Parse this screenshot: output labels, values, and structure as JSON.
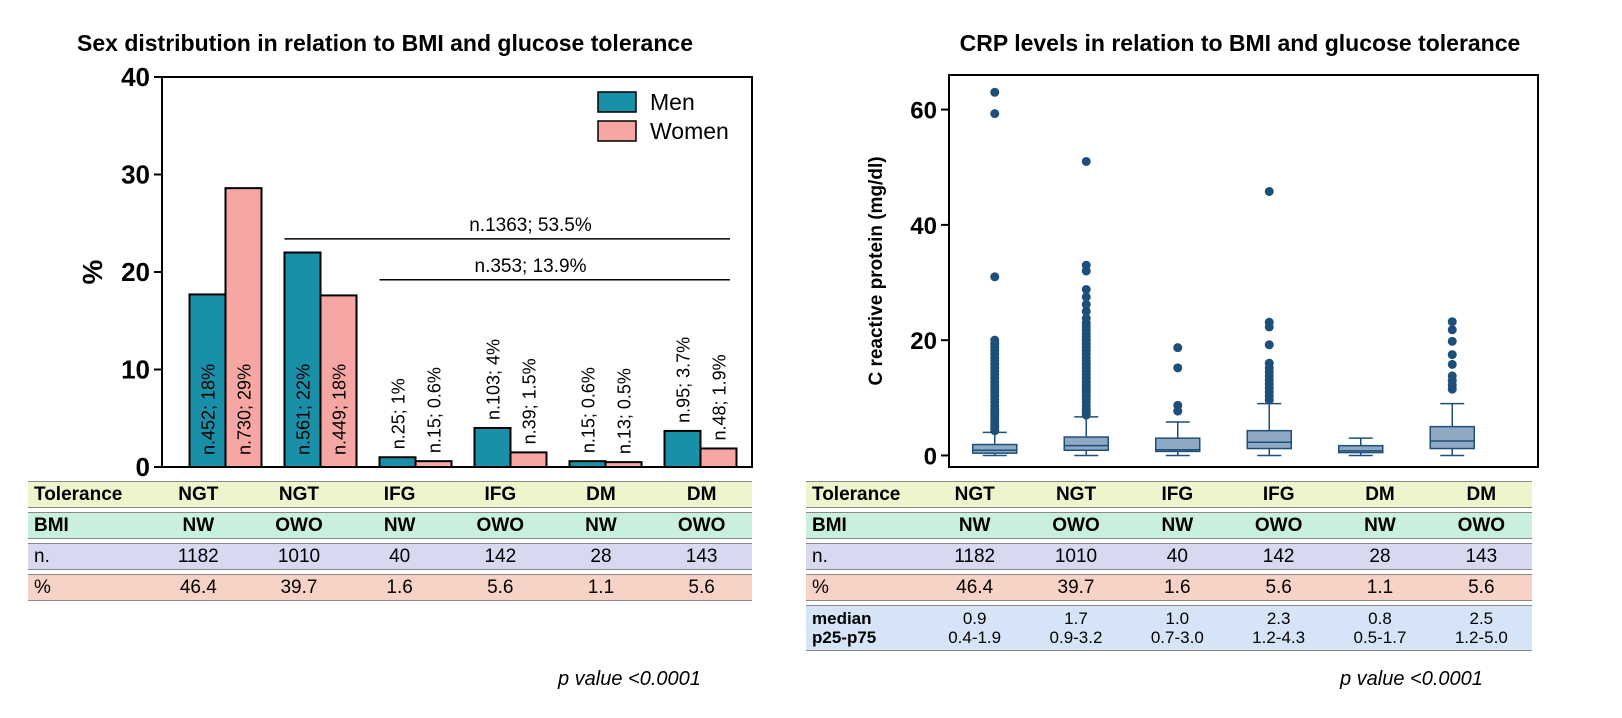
{
  "chart_data": [
    {
      "type": "bar",
      "title": "Sex distribution in relation to BMI and glucose tolerance",
      "ylabel": "%",
      "ylim": [
        0,
        40
      ],
      "yticks": [
        0,
        10,
        20,
        30,
        40
      ],
      "grid": false,
      "legend_position": "top-right",
      "categories": [
        "NGT NW",
        "NGT OWO",
        "IFG NW",
        "IFG OWO",
        "DM NW",
        "DM OWO"
      ],
      "series": [
        {
          "name": "Men",
          "color": "#1a8fa8",
          "values": [
            17.7,
            22.0,
            1.0,
            4.0,
            0.6,
            3.7
          ],
          "labels": [
            "n.452; 18%",
            "n.561; 22%",
            "n.25; 1%",
            "n.103; 4%",
            "n.15; 0.6%",
            "n.95; 3.7%"
          ]
        },
        {
          "name": "Women",
          "color": "#f6a6a3",
          "values": [
            28.6,
            17.6,
            0.6,
            1.5,
            0.5,
            1.9
          ],
          "labels": [
            "n.730; 29%",
            "n.449; 18%",
            "n.15; 0.6%",
            "n.39; 1.5%",
            "n.13; 0.5%",
            "n.48; 1.9%"
          ]
        }
      ],
      "annotations": [
        {
          "text": "n.1363; 53.5%",
          "y": 23.4,
          "from_group": 1,
          "to_group": 5
        },
        {
          "text": "n.353; 13.9%",
          "y": 19.2,
          "from_group": 2,
          "to_group": 5
        }
      ],
      "table": {
        "rows": [
          {
            "label": "Tolerance",
            "values": [
              "NGT",
              "NGT",
              "IFG",
              "IFG",
              "DM",
              "DM"
            ]
          },
          {
            "label": "BMI",
            "values": [
              "NW",
              "OWO",
              "NW",
              "OWO",
              "NW",
              "OWO"
            ]
          },
          {
            "label": "n.",
            "values": [
              "1182",
              "1010",
              "40",
              "142",
              "28",
              "143"
            ]
          },
          {
            "label": "%",
            "values": [
              "46.4",
              "39.7",
              "1.6",
              "5.6",
              "1.1",
              "5.6"
            ]
          }
        ]
      },
      "p_value": "p value <0.0001"
    },
    {
      "type": "box",
      "title": "CRP levels in relation to BMI and glucose tolerance",
      "ylabel": "C reactive protein (mg/dl)",
      "ylim": [
        -2,
        66
      ],
      "yticks": [
        0,
        20,
        40,
        60
      ],
      "grid": false,
      "color": "#1e4f79",
      "box_fill": "#8fa8c3",
      "categories": [
        "NGT NW",
        "NGT OWO",
        "IFG NW",
        "IFG OWO",
        "DM NW",
        "DM OWO"
      ],
      "boxes": [
        {
          "median": 0.9,
          "q1": 0.4,
          "q3": 1.9,
          "whisker_low": 0,
          "whisker_high": 4,
          "outliers": [
            4.3,
            4.7,
            5.1,
            5.5,
            6.0,
            6.5,
            7.0,
            7.5,
            8.0,
            8.6,
            9.2,
            9.8,
            10.4,
            11.0,
            11.6,
            12.2,
            12.8,
            13.4,
            14.0,
            14.6,
            15.2,
            15.8,
            16.4,
            17.0,
            17.6,
            18.2,
            18.8,
            19.4,
            20.0,
            31,
            59.3,
            63
          ]
        },
        {
          "median": 1.7,
          "q1": 0.9,
          "q3": 3.2,
          "whisker_low": 0,
          "whisker_high": 6.7,
          "outliers": [
            7.0,
            7.5,
            8.0,
            8.6,
            9.2,
            9.8,
            10.4,
            11.0,
            11.6,
            12.2,
            12.8,
            13.4,
            14.0,
            14.6,
            15.2,
            15.8,
            16.4,
            17.0,
            17.6,
            18.2,
            18.8,
            19.4,
            20.0,
            20.6,
            21.2,
            21.8,
            22.4,
            23.0,
            23.8,
            25.0,
            26.2,
            27.5,
            28.8,
            32.0,
            33.0,
            51.0
          ]
        },
        {
          "median": 1.0,
          "q1": 0.7,
          "q3": 3.0,
          "whisker_low": 0,
          "whisker_high": 5.8,
          "outliers": [
            7.7,
            8.7,
            15.2,
            18.7
          ]
        },
        {
          "median": 2.3,
          "q1": 1.2,
          "q3": 4.3,
          "whisker_low": 0,
          "whisker_high": 9,
          "outliers": [
            9.6,
            10.3,
            11.0,
            11.7,
            12.4,
            13.1,
            13.8,
            14.5,
            15.2,
            16.0,
            19.2,
            22.3,
            23.1,
            45.8
          ]
        },
        {
          "median": 0.8,
          "q1": 0.5,
          "q3": 1.7,
          "whisker_low": 0,
          "whisker_high": 3.0,
          "outliers": []
        },
        {
          "median": 2.5,
          "q1": 1.2,
          "q3": 5.0,
          "whisker_low": 0,
          "whisker_high": 9,
          "outliers": [
            11.5,
            12.2,
            13.0,
            13.8,
            15.8,
            17.5,
            19.8,
            21.8,
            23.2
          ]
        }
      ],
      "table": {
        "rows": [
          {
            "label": "Tolerance",
            "values": [
              "NGT",
              "NGT",
              "IFG",
              "IFG",
              "DM",
              "DM"
            ]
          },
          {
            "label": "BMI",
            "values": [
              "NW",
              "OWO",
              "NW",
              "OWO",
              "NW",
              "OWO"
            ]
          },
          {
            "label": "n.",
            "values": [
              "1182",
              "1010",
              "40",
              "142",
              "28",
              "143"
            ]
          },
          {
            "label": "%",
            "values": [
              "46.4",
              "39.7",
              "1.6",
              "5.6",
              "1.1",
              "5.6"
            ]
          }
        ],
        "median_label": "median",
        "iqr_label": "p25-p75",
        "medians": [
          "0.9",
          "1.7",
          "1.0",
          "2.3",
          "0.8",
          "2.5"
        ],
        "iqrs": [
          "0.4-1.9",
          "0.9-3.2",
          "0.7-3.0",
          "1.2-4.3",
          "0.5-1.7",
          "1.2-5.0"
        ]
      },
      "p_value": "p value <0.0001"
    }
  ]
}
